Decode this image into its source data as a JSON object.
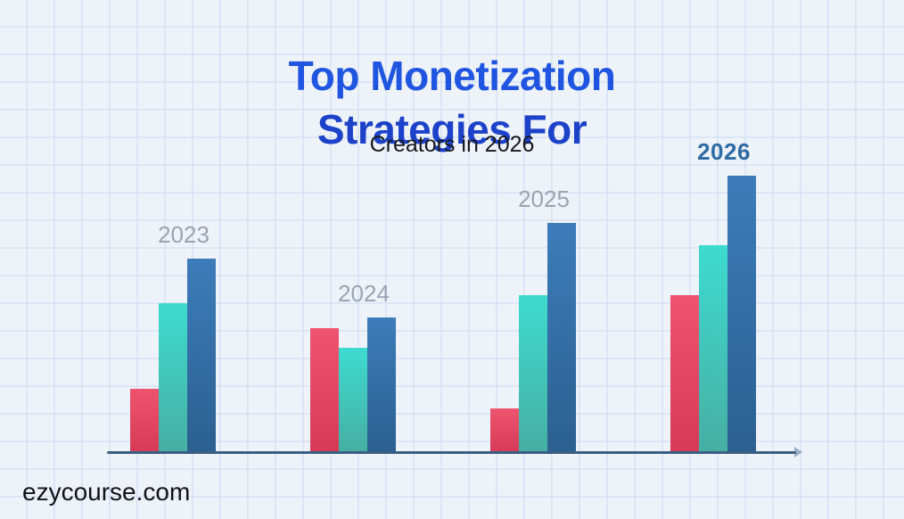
{
  "page": {
    "background": "#eef3fa",
    "grid_color": "#c6d7ee",
    "watermark": "ezycourse.com",
    "watermark_color": "#101419"
  },
  "header": {
    "title_line1": "Top Monetization",
    "title_line2": "Strategies For",
    "title_color_line1": "#1f55e0",
    "title_color_line2": "#1c42c9",
    "subtitle": "Creators in 2026",
    "subtitle_color": "#17181a"
  },
  "chart_data": {
    "type": "bar",
    "title": "Top Monetization Strategies For Creators in 2026",
    "categories": [
      "2023",
      "2024",
      "2025",
      "2026"
    ],
    "series": [
      {
        "name": "red",
        "color_top": "#ee5370",
        "color_bottom": "#d53a56",
        "values": [
          23,
          45,
          16,
          57
        ]
      },
      {
        "name": "teal",
        "color_top": "#3edbd0",
        "color_bottom": "#47aea3",
        "values": [
          54,
          38,
          57,
          75
        ]
      },
      {
        "name": "blue",
        "color_top": "#3d7cba",
        "color_bottom": "#2b6090",
        "values": [
          70,
          49,
          83,
          100
        ]
      }
    ],
    "xlabel": "",
    "ylabel": "",
    "ylim": [
      0,
      100
    ],
    "grid": "faint background squares",
    "legend": "none",
    "axis_line_color": "#3a5f84",
    "category_label_color": "#9aa4b1",
    "highlight_category": "2026",
    "highlight_label_color": "#2e6ba3"
  }
}
